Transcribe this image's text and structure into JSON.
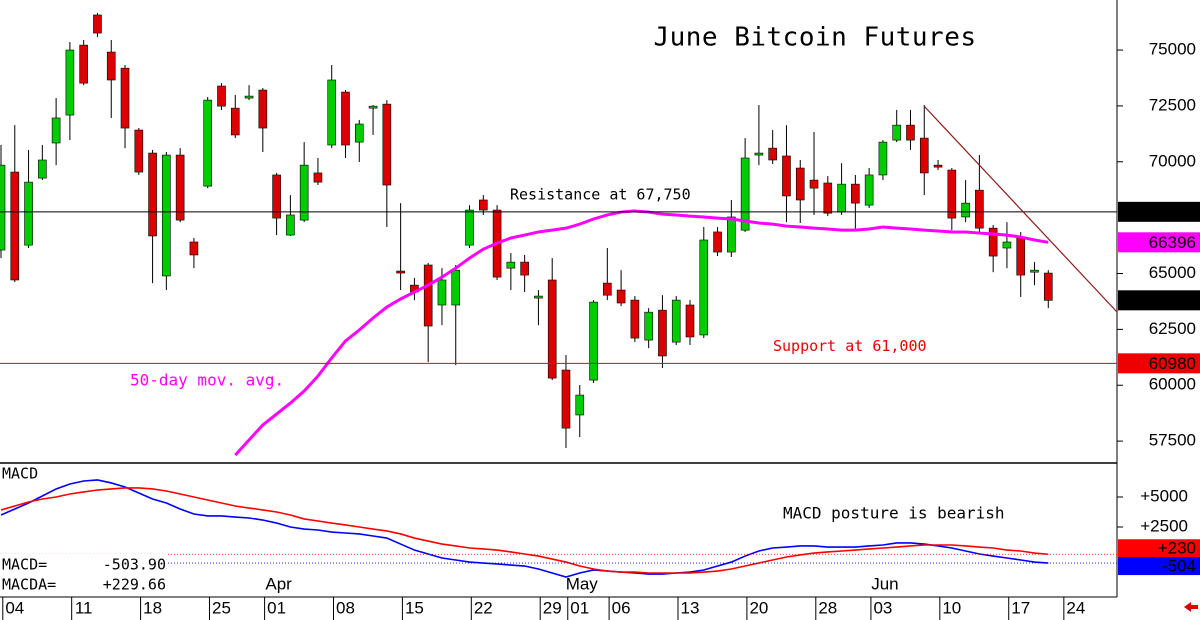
{
  "chart_data": [
    {
      "type": "candlestick",
      "title": "June Bitcoin Futures",
      "categories": [
        null,
        "04",
        null,
        null,
        null,
        null,
        "11",
        null,
        null,
        null,
        null,
        "18",
        null,
        null,
        null,
        null,
        "25",
        null,
        null,
        null,
        "01",
        null,
        null,
        null,
        null,
        "08",
        null,
        null,
        null,
        null,
        "15",
        null,
        null,
        null,
        null,
        "22",
        null,
        null,
        null,
        null,
        "29",
        null,
        "01",
        null,
        null,
        "06",
        null,
        null,
        null,
        null,
        "13",
        null,
        null,
        null,
        null,
        "20",
        null,
        null,
        null,
        null,
        "28",
        null,
        null,
        null,
        "03",
        null,
        null,
        null,
        null,
        "10",
        null,
        null,
        null,
        null,
        "17",
        null,
        null,
        null,
        "24"
      ],
      "month_labels": [
        null,
        null,
        null,
        null,
        null,
        null,
        null,
        null,
        null,
        null,
        null,
        null,
        null,
        null,
        null,
        null,
        null,
        null,
        null,
        null,
        "Apr",
        null,
        null,
        null,
        null,
        null,
        null,
        null,
        null,
        null,
        null,
        null,
        null,
        null,
        null,
        null,
        null,
        null,
        null,
        null,
        null,
        null,
        "May",
        null,
        null,
        null,
        null,
        null,
        null,
        null,
        null,
        null,
        null,
        null,
        null,
        null,
        null,
        null,
        null,
        null,
        null,
        null,
        null,
        null,
        "Jun",
        null,
        null,
        null,
        null,
        null,
        null,
        null,
        null,
        null,
        null,
        null,
        null,
        null,
        null
      ],
      "open": [
        66050,
        69540,
        66270,
        69270,
        70840,
        72090,
        75220,
        76570,
        74910,
        74190,
        71420,
        70390,
        64890,
        70300,
        66410,
        68910,
        73390,
        72400,
        72850,
        73210,
        69410,
        66720,
        67390,
        69500,
        70750,
        73120,
        70880,
        72400,
        72580,
        65110,
        64480,
        65380,
        63590,
        63590,
        66270,
        68290,
        67840,
        65240,
        65510,
        63900,
        64710,
        60680,
        58670,
        60230,
        64570,
        64260,
        63810,
        62020,
        63360,
        61930,
        63590,
        62250,
        66860,
        65960,
        66940,
        70300,
        70610,
        70260,
        69720,
        69180,
        69050,
        67750,
        69000,
        68060,
        69410,
        70970,
        71640,
        71060,
        69850,
        69630,
        67530,
        68730,
        67030,
        66140,
        66590,
        65060,
        65020,
        null,
        null
      ],
      "high": [
        70750,
        71640,
        70530,
        70750,
        72850,
        75360,
        75450,
        76660,
        75450,
        74330,
        71510,
        70530,
        70440,
        70610,
        66590,
        72900,
        73520,
        72990,
        73430,
        73300,
        69500,
        68510,
        70880,
        70170,
        74330,
        73210,
        71870,
        72540,
        72760,
        68150,
        64800,
        65470,
        65240,
        65380,
        68060,
        68510,
        68060,
        65920,
        65830,
        64260,
        65690,
        61350,
        60010,
        63810,
        66140,
        65150,
        63990,
        63450,
        64030,
        63990,
        63810,
        67080,
        67080,
        68290,
        71060,
        72540,
        71420,
        71640,
        70080,
        71330,
        69360,
        69940,
        69410,
        69720,
        70970,
        72320,
        72320,
        72540,
        70080,
        69720,
        69180,
        70300,
        67170,
        67300,
        66860,
        65510,
        65150,
        null,
        null
      ],
      "low": [
        65690,
        64620,
        66140,
        69180,
        69850,
        70970,
        73430,
        75580,
        71960,
        70610,
        69410,
        64570,
        64260,
        67300,
        65240,
        68820,
        72320,
        71060,
        72760,
        70440,
        66720,
        66680,
        67300,
        68960,
        70610,
        70170,
        69990,
        71200,
        67080,
        64260,
        63810,
        61040,
        62690,
        60900,
        66140,
        67620,
        64710,
        64260,
        64170,
        62690,
        60230,
        57190,
        57680,
        60100,
        63810,
        63540,
        61930,
        61660,
        60770,
        61800,
        61800,
        62110,
        65780,
        65740,
        66860,
        69850,
        69900,
        67300,
        67260,
        67620,
        67570,
        67620,
        66940,
        67930,
        69180,
        70880,
        70530,
        68510,
        69630,
        66940,
        67300,
        66860,
        65060,
        65240,
        63950,
        64480,
        63450,
        null,
        null
      ],
      "close": [
        69850,
        64710,
        69090,
        70080,
        71960,
        75000,
        73520,
        75760,
        73660,
        71510,
        69540,
        66680,
        70300,
        67390,
        65830,
        72760,
        72490,
        71200,
        72940,
        71510,
        67480,
        67620,
        69850,
        69090,
        73660,
        70750,
        71690,
        72490,
        68960,
        65020,
        64170,
        62650,
        64710,
        65150,
        67840,
        67840,
        64840,
        65510,
        64930,
        63990,
        60320,
        58080,
        59560,
        63720,
        64030,
        63680,
        62110,
        63270,
        61310,
        63810,
        62160,
        66500,
        65960,
        67530,
        70170,
        70390,
        70080,
        68470,
        68290,
        68820,
        67700,
        69000,
        68150,
        69410,
        70880,
        71640,
        70970,
        69500,
        69760,
        67480,
        68150,
        67030,
        65780,
        66410,
        64930,
        65150,
        63800,
        null,
        null
      ],
      "last_label": "63800",
      "up_color": "#00cc00",
      "down_color": "#dd0000",
      "ylim": [
        56520,
        77240
      ],
      "yticks": [
        57500,
        60000,
        62500,
        65000,
        70000,
        72500,
        75000
      ],
      "grid": false,
      "series": [
        {
          "name": "50-day mov. avg.",
          "color": "#ff00ff",
          "end_label": "66396",
          "values": [
            null,
            null,
            null,
            null,
            null,
            null,
            null,
            null,
            null,
            null,
            null,
            null,
            null,
            null,
            null,
            null,
            null,
            56870,
            57550,
            58220,
            58710,
            59200,
            59740,
            60410,
            61220,
            61980,
            62470,
            63010,
            63500,
            63860,
            64170,
            64480,
            64840,
            65240,
            65690,
            66090,
            66360,
            66590,
            66720,
            66860,
            66940,
            67030,
            67210,
            67440,
            67620,
            67750,
            67800,
            67750,
            67660,
            67620,
            67570,
            67530,
            67480,
            67440,
            67350,
            67260,
            67210,
            67120,
            67080,
            67030,
            66990,
            66940,
            66940,
            66990,
            67080,
            67030,
            66990,
            66940,
            66900,
            66860,
            66860,
            66810,
            66770,
            66720,
            66630,
            66500,
            66396,
            null,
            null
          ]
        }
      ],
      "levels": [
        {
          "value": 67760,
          "label": "67760",
          "text": "Resistance at 67,750",
          "color": "#000000"
        },
        {
          "value": 60980,
          "label": "60980",
          "text": "Support at 61,000",
          "color": "#ee0000"
        }
      ]
    },
    {
      "type": "line",
      "title": "MACD",
      "annotation": "MACD posture is bearish",
      "ylim": [
        -3330,
        7830
      ],
      "yticks": [
        {
          "value": 5000,
          "label": "+5000"
        },
        {
          "value": 2500,
          "label": "+2500"
        }
      ],
      "series": [
        {
          "name": "MACD=",
          "color": "#0000ff",
          "readout": "-503.90",
          "end_label": "-504",
          "values": [
            3500,
            4000,
            4500,
            5080,
            5670,
            6080,
            6330,
            6420,
            6170,
            5830,
            5330,
            4830,
            4500,
            4000,
            3580,
            3420,
            3420,
            3330,
            3250,
            3080,
            2830,
            2500,
            2330,
            2250,
            2080,
            2000,
            1920,
            1750,
            1580,
            1080,
            580,
            250,
            -80,
            -250,
            -420,
            -500,
            -580,
            -670,
            -750,
            -1000,
            -1330,
            -1670,
            -1330,
            -1080,
            -1170,
            -1250,
            -1330,
            -1420,
            -1420,
            -1330,
            -1250,
            -1080,
            -750,
            -420,
            80,
            500,
            750,
            830,
            920,
            920,
            830,
            830,
            830,
            920,
            1000,
            1170,
            1170,
            1080,
            920,
            750,
            500,
            250,
            80,
            -80,
            -250,
            -420,
            -503.9,
            null,
            null
          ]
        },
        {
          "name": "MACDA=",
          "color": "#ff0000",
          "readout": "+229.66",
          "end_label": "+230",
          "values": [
            3920,
            4250,
            4580,
            4830,
            5000,
            5250,
            5420,
            5580,
            5670,
            5750,
            5750,
            5670,
            5500,
            5250,
            5000,
            4750,
            4500,
            4250,
            4080,
            3920,
            3750,
            3500,
            3170,
            3000,
            2830,
            2670,
            2500,
            2330,
            2170,
            1920,
            1580,
            1330,
            1080,
            920,
            750,
            670,
            580,
            420,
            250,
            80,
            -170,
            -420,
            -750,
            -1000,
            -1170,
            -1250,
            -1250,
            -1330,
            -1330,
            -1330,
            -1330,
            -1250,
            -1170,
            -1000,
            -750,
            -500,
            -250,
            0,
            170,
            330,
            420,
            500,
            580,
            670,
            750,
            830,
            920,
            1000,
            1000,
            1000,
            920,
            830,
            750,
            580,
            500,
            330,
            229.66,
            null,
            null
          ]
        }
      ]
    }
  ]
}
